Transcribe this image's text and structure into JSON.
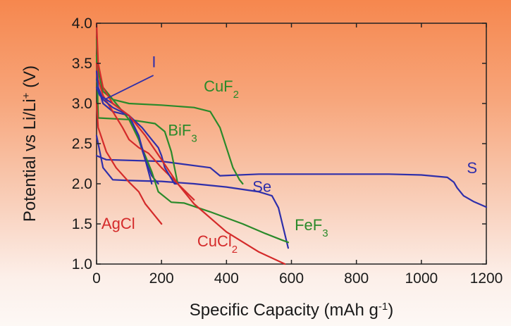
{
  "chart_data": {
    "type": "line",
    "title": "",
    "xlabel": "Specific Capacity (mAh g",
    "xlabel_sup": "-1",
    "xlabel_end": ")",
    "ylabel": "Potential vs Li/Li",
    "ylabel_sup": "+",
    "ylabel_end": " (V)",
    "xlim": [
      0,
      1200
    ],
    "ylim": [
      1.0,
      4.0
    ],
    "x_ticks": [
      "0",
      "200",
      "400",
      "600",
      "800",
      "1000",
      "1200"
    ],
    "y_ticks": [
      "1.0",
      "1.5",
      "2.0",
      "2.5",
      "3.0",
      "3.5",
      "4.0"
    ],
    "grid": false,
    "legend": "none",
    "series": [
      {
        "name": "S",
        "color": "#2f2faa",
        "x": [
          0,
          30,
          200,
          350,
          380,
          500,
          700,
          900,
          1000,
          1080,
          1100,
          1110,
          1130,
          1160,
          1200
        ],
        "y": [
          2.35,
          2.3,
          2.28,
          2.2,
          2.1,
          2.12,
          2.12,
          2.12,
          2.11,
          2.08,
          2.02,
          1.95,
          1.85,
          1.78,
          1.71
        ]
      },
      {
        "name": "Se",
        "color": "#2f2faa",
        "x": [
          0,
          20,
          50,
          100,
          200,
          300,
          400,
          500,
          540,
          560,
          575,
          590
        ],
        "y": [
          2.6,
          2.2,
          2.05,
          2.04,
          2.03,
          2.0,
          1.96,
          1.9,
          1.85,
          1.7,
          1.45,
          1.2
        ]
      },
      {
        "name": "I",
        "color": "#2f2faa",
        "x": [
          0,
          5,
          20,
          50,
          100,
          130,
          150,
          170,
          190
        ],
        "y": [
          3.3,
          3.2,
          3.0,
          2.9,
          2.85,
          2.55,
          2.3,
          2.1,
          2.0
        ]
      },
      {
        "name": "CuF2",
        "color": "#2a8a2a",
        "x": [
          0,
          5,
          20,
          50,
          100,
          200,
          300,
          350,
          380,
          400,
          420,
          440,
          450
        ],
        "y": [
          3.8,
          3.4,
          3.15,
          3.05,
          3.0,
          2.98,
          2.95,
          2.9,
          2.7,
          2.45,
          2.2,
          2.05,
          2.0
        ]
      },
      {
        "name": "BiF3",
        "color": "#2a8a2a",
        "x": [
          0,
          5,
          100,
          180,
          210,
          230,
          240,
          250
        ],
        "y": [
          3.6,
          2.82,
          2.8,
          2.75,
          2.65,
          2.4,
          2.2,
          2.0
        ]
      },
      {
        "name": "FeF3",
        "color": "#2a8a2a",
        "x": [
          0,
          5,
          20,
          60,
          100,
          130,
          150,
          170,
          190,
          230,
          270,
          350,
          450,
          520,
          570,
          590
        ],
        "y": [
          3.6,
          3.4,
          3.2,
          3.0,
          2.8,
          2.55,
          2.35,
          2.15,
          1.9,
          1.77,
          1.76,
          1.65,
          1.5,
          1.38,
          1.3,
          1.27
        ]
      },
      {
        "name": "CuCl2",
        "color": "#d42a2a",
        "x": [
          0,
          5,
          20,
          50,
          80,
          100,
          130,
          160,
          200,
          250,
          300,
          400,
          500,
          580
        ],
        "y": [
          3.5,
          3.3,
          3.1,
          2.9,
          2.7,
          2.55,
          2.45,
          2.38,
          2.2,
          2.0,
          1.75,
          1.4,
          1.15,
          1.0
        ]
      },
      {
        "name": "AgCl",
        "color": "#d42a2a",
        "x": [
          0,
          5,
          30,
          60,
          100,
          130,
          150,
          180,
          200
        ],
        "y": [
          3.0,
          2.7,
          2.4,
          2.2,
          2.02,
          1.9,
          1.75,
          1.6,
          1.5
        ]
      },
      {
        "name": "",
        "color": "#2f2faa",
        "x": [
          0,
          10,
          50,
          100,
          140,
          170,
          190,
          200,
          210,
          240,
          245,
          250
        ],
        "y": [
          3.2,
          3.1,
          3.0,
          2.85,
          2.7,
          2.55,
          2.45,
          2.35,
          2.2,
          2.0,
          2.0,
          2.0
        ]
      },
      {
        "name": "",
        "color": "#2f2faa",
        "x": [
          0,
          5,
          20,
          50,
          100,
          130,
          150,
          170
        ],
        "y": [
          3.4,
          3.2,
          3.05,
          2.95,
          2.85,
          2.6,
          2.3,
          2.0
        ]
      },
      {
        "name": "",
        "color": "#d42a2a",
        "x": [
          0,
          5,
          20,
          50,
          100,
          150,
          200,
          250,
          300
        ],
        "y": [
          4.0,
          3.5,
          3.2,
          3.0,
          2.85,
          2.6,
          2.3,
          2.0,
          1.8
        ]
      }
    ],
    "labels": [
      {
        "text": "I",
        "sub": "",
        "color": "#2f2faa",
        "x": 170,
        "y": 3.45
      },
      {
        "text": "CuF",
        "sub": "2",
        "color": "#2a8a2a",
        "x": 330,
        "y": 3.15
      },
      {
        "text": "BiF",
        "sub": "3",
        "color": "#2a8a2a",
        "x": 220,
        "y": 2.6
      },
      {
        "text": "S",
        "sub": "",
        "color": "#2f2faa",
        "x": 1140,
        "y": 2.13
      },
      {
        "text": "Se",
        "sub": "",
        "color": "#2f2faa",
        "x": 480,
        "y": 1.9
      },
      {
        "text": "FeF",
        "sub": "3",
        "color": "#2a8a2a",
        "x": 610,
        "y": 1.42
      },
      {
        "text": "AgCl",
        "sub": "",
        "color": "#d42a2a",
        "x": 15,
        "y": 1.44
      },
      {
        "text": "CuCl",
        "sub": "2",
        "color": "#d42a2a",
        "x": 310,
        "y": 1.22
      }
    ],
    "annotation_line": {
      "color": "#2f2faa",
      "x1": 175,
      "y1": 3.35,
      "x2": 25,
      "y2": 3.05
    }
  }
}
